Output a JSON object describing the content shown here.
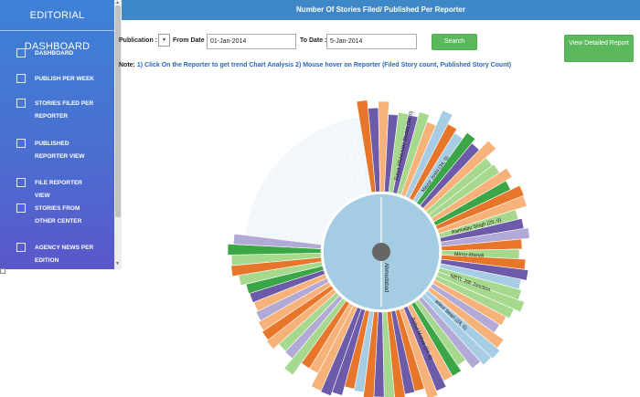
{
  "sidebar": {
    "title": "EDITORIAL DASHBOARD",
    "items": [
      {
        "label": "DASHBOARD"
      },
      {
        "label": "PUBLISH PER WEEK"
      },
      {
        "label": "STORIES FILED PER REPORTER"
      },
      {
        "label": "PUBLISHED REPORTER VIEW"
      },
      {
        "label": "FILE REPORTER VIEW"
      },
      {
        "label": "STORIES FROM OTHER CENTER"
      },
      {
        "label": "AGENCY NEWS PER EDITION"
      }
    ]
  },
  "header": {
    "title": "Number Of Stories Filed/ Published Per Reporter"
  },
  "filters": {
    "publication_label": "Publication :",
    "from_label": "From Date :",
    "from_value": "01-Jan-2014",
    "to_label": "To Date :",
    "to_value": "5-Jan-2014",
    "search_label": "Search",
    "view_report_label": "View Detailed Report"
  },
  "note": {
    "label": "Note:",
    "text": "1) Click On the Reporter to get trend Chart Analysis 2) Mouse hover on Reporter (Filed Story count, Published Story Count)"
  },
  "chart_data": {
    "type": "sunburst",
    "center_label": "Ahmedabad",
    "colors": {
      "orange": "#e8762a",
      "light_orange": "#f7b27a",
      "green": "#3aa645",
      "light_green": "#a6d98d",
      "purple": "#6d5aa8",
      "light_purple": "#b3a9d6",
      "blue_light": "#a7cde4",
      "center": "#a4cde4"
    },
    "visible_labels": [
      "Surya PRAKASH Shukla (34, 0)",
      "Mayur Joshi (34, 0)",
      "Ramvijay Singh (25, 0)",
      "Mirror-Manali",
      "NBTL Job Junction",
      "ankur tiwari (24, 0)",
      "Rahul Mishra (24, 0)"
    ]
  }
}
